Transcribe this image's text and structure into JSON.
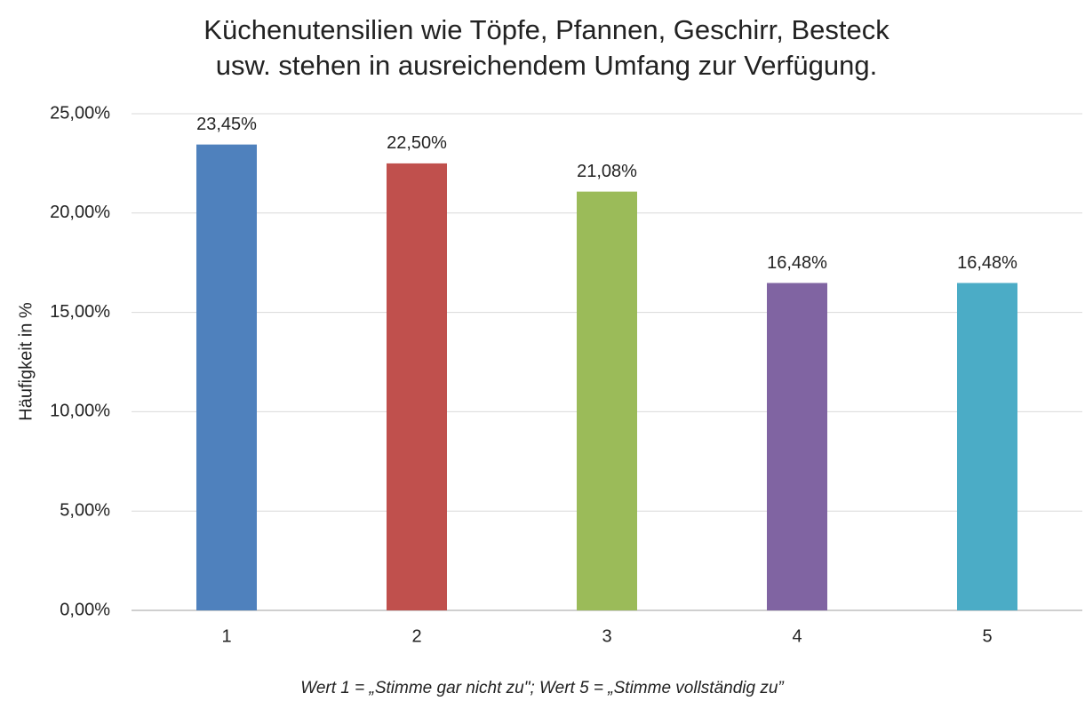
{
  "chart_data": {
    "type": "bar",
    "title": [
      "Küchenutensilien wie Töpfe, Pfannen, Geschirr, Besteck",
      "usw. stehen in ausreichendem Umfang zur Verfügung."
    ],
    "ylabel": "Häufigkeit in %",
    "note": "Wert 1 = „Stimme gar nicht zu\"; Wert 5 = „Stimme vollständig zu”",
    "categories": [
      "1",
      "2",
      "3",
      "4",
      "5"
    ],
    "values": [
      23.45,
      22.5,
      21.08,
      16.48,
      16.48
    ],
    "value_labels": [
      "23,45%",
      "22,50%",
      "21,08%",
      "16,48%",
      "16,48%"
    ],
    "colors": [
      "#4f81bd",
      "#c0504d",
      "#9bbb59",
      "#8064a2",
      "#4bacc6"
    ],
    "ylim": [
      0,
      25
    ],
    "yticks": [
      {
        "value": 0,
        "label": "0,00%"
      },
      {
        "value": 5,
        "label": "5,00%"
      },
      {
        "value": 10,
        "label": "10,00%"
      },
      {
        "value": 15,
        "label": "15,00%"
      },
      {
        "value": 20,
        "label": "20,00%"
      },
      {
        "value": 25,
        "label": "25,00%"
      }
    ],
    "grid": true
  }
}
